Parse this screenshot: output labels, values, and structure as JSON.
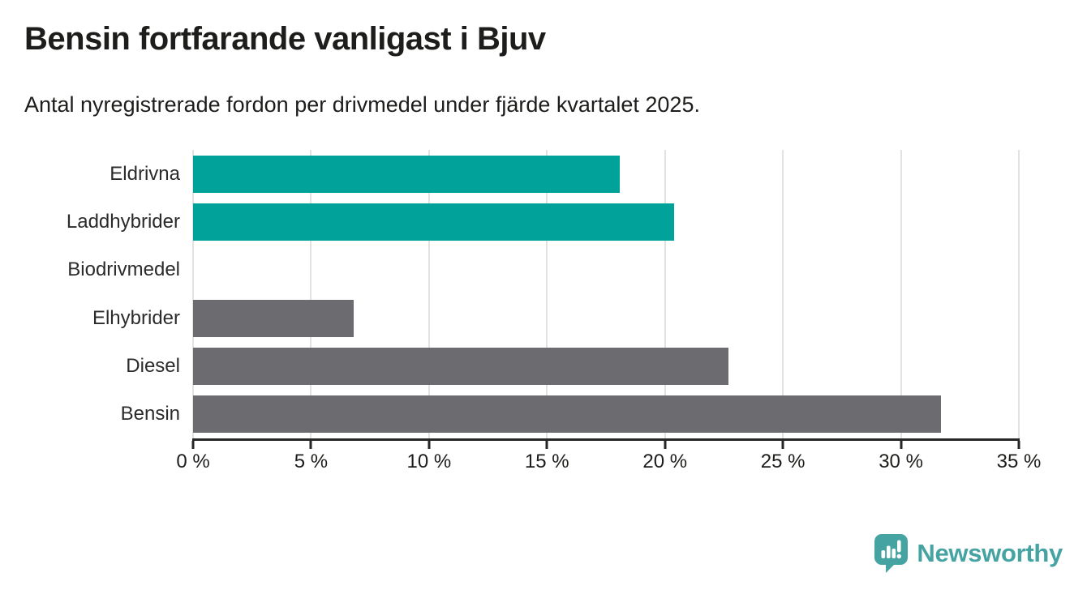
{
  "chart_data": {
    "type": "bar",
    "orientation": "horizontal",
    "title": "Bensin fortfarande vanligast i Bjuv",
    "subtitle": "Antal nyregistrerade fordon per drivmedel under fjärde kvartalet 2025.",
    "categories": [
      "Eldrivna",
      "Laddhybrider",
      "Biodrivmedel",
      "Elhybrider",
      "Diesel",
      "Bensin"
    ],
    "values": [
      18.1,
      20.4,
      0,
      6.8,
      22.7,
      31.7
    ],
    "unit": "%",
    "bar_colors": [
      "#00a29a",
      "#00a29a",
      "#00a29a",
      "#6b6b70",
      "#6b6b70",
      "#6b6b70"
    ],
    "xlabel": "",
    "ylabel": "",
    "xlim": [
      0,
      35
    ],
    "x_tick_labels": [
      "0 %",
      "5 %",
      "10 %",
      "15 %",
      "20 %",
      "25 %",
      "30 %",
      "35 %"
    ],
    "grid": "vertical-only",
    "legend": "none",
    "colors": {
      "teal": "#00a29a",
      "gray": "#6b6b70",
      "gridline": "#e2e2e2",
      "axis": "#262626",
      "text": "#1d1d1b"
    }
  },
  "branding": {
    "name": "Newsworthy",
    "color": "#45a3a2"
  }
}
